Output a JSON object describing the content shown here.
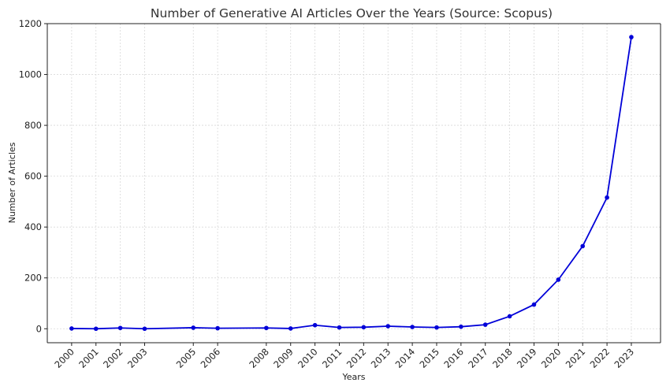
{
  "chart_data": {
    "type": "line",
    "title": "Number of Generative AI Articles Over the Years (Source: Scopus)",
    "xlabel": "Years",
    "ylabel": "Number of Articles",
    "x": [
      2000,
      2001,
      2002,
      2003,
      2005,
      2006,
      2008,
      2009,
      2010,
      2011,
      2012,
      2013,
      2014,
      2015,
      2016,
      2017,
      2018,
      2019,
      2020,
      2021,
      2022,
      2023
    ],
    "x_tick_labels": [
      "2000",
      "2001",
      "2002",
      "2003",
      "2005",
      "2006",
      "2008",
      "2009",
      "2010",
      "2011",
      "2012",
      "2013",
      "2014",
      "2015",
      "2016",
      "2017",
      "2018",
      "2019",
      "2020",
      "2021",
      "2022",
      "2023"
    ],
    "series": [
      {
        "values": [
          1,
          0,
          3,
          0,
          4,
          2,
          3,
          1,
          14,
          5,
          6,
          10,
          7,
          5,
          8,
          16,
          49,
          95,
          193,
          325,
          516,
          1147
        ]
      }
    ],
    "y_ticks": [
      0,
      200,
      400,
      600,
      800,
      1000,
      1200
    ],
    "y_tick_labels": [
      "0",
      "200",
      "400",
      "600",
      "800",
      "1000",
      "1200"
    ],
    "ylim": [
      -55,
      1200
    ],
    "grid": true,
    "series_color": "#0000d8",
    "x_tick_rotation": 45
  }
}
